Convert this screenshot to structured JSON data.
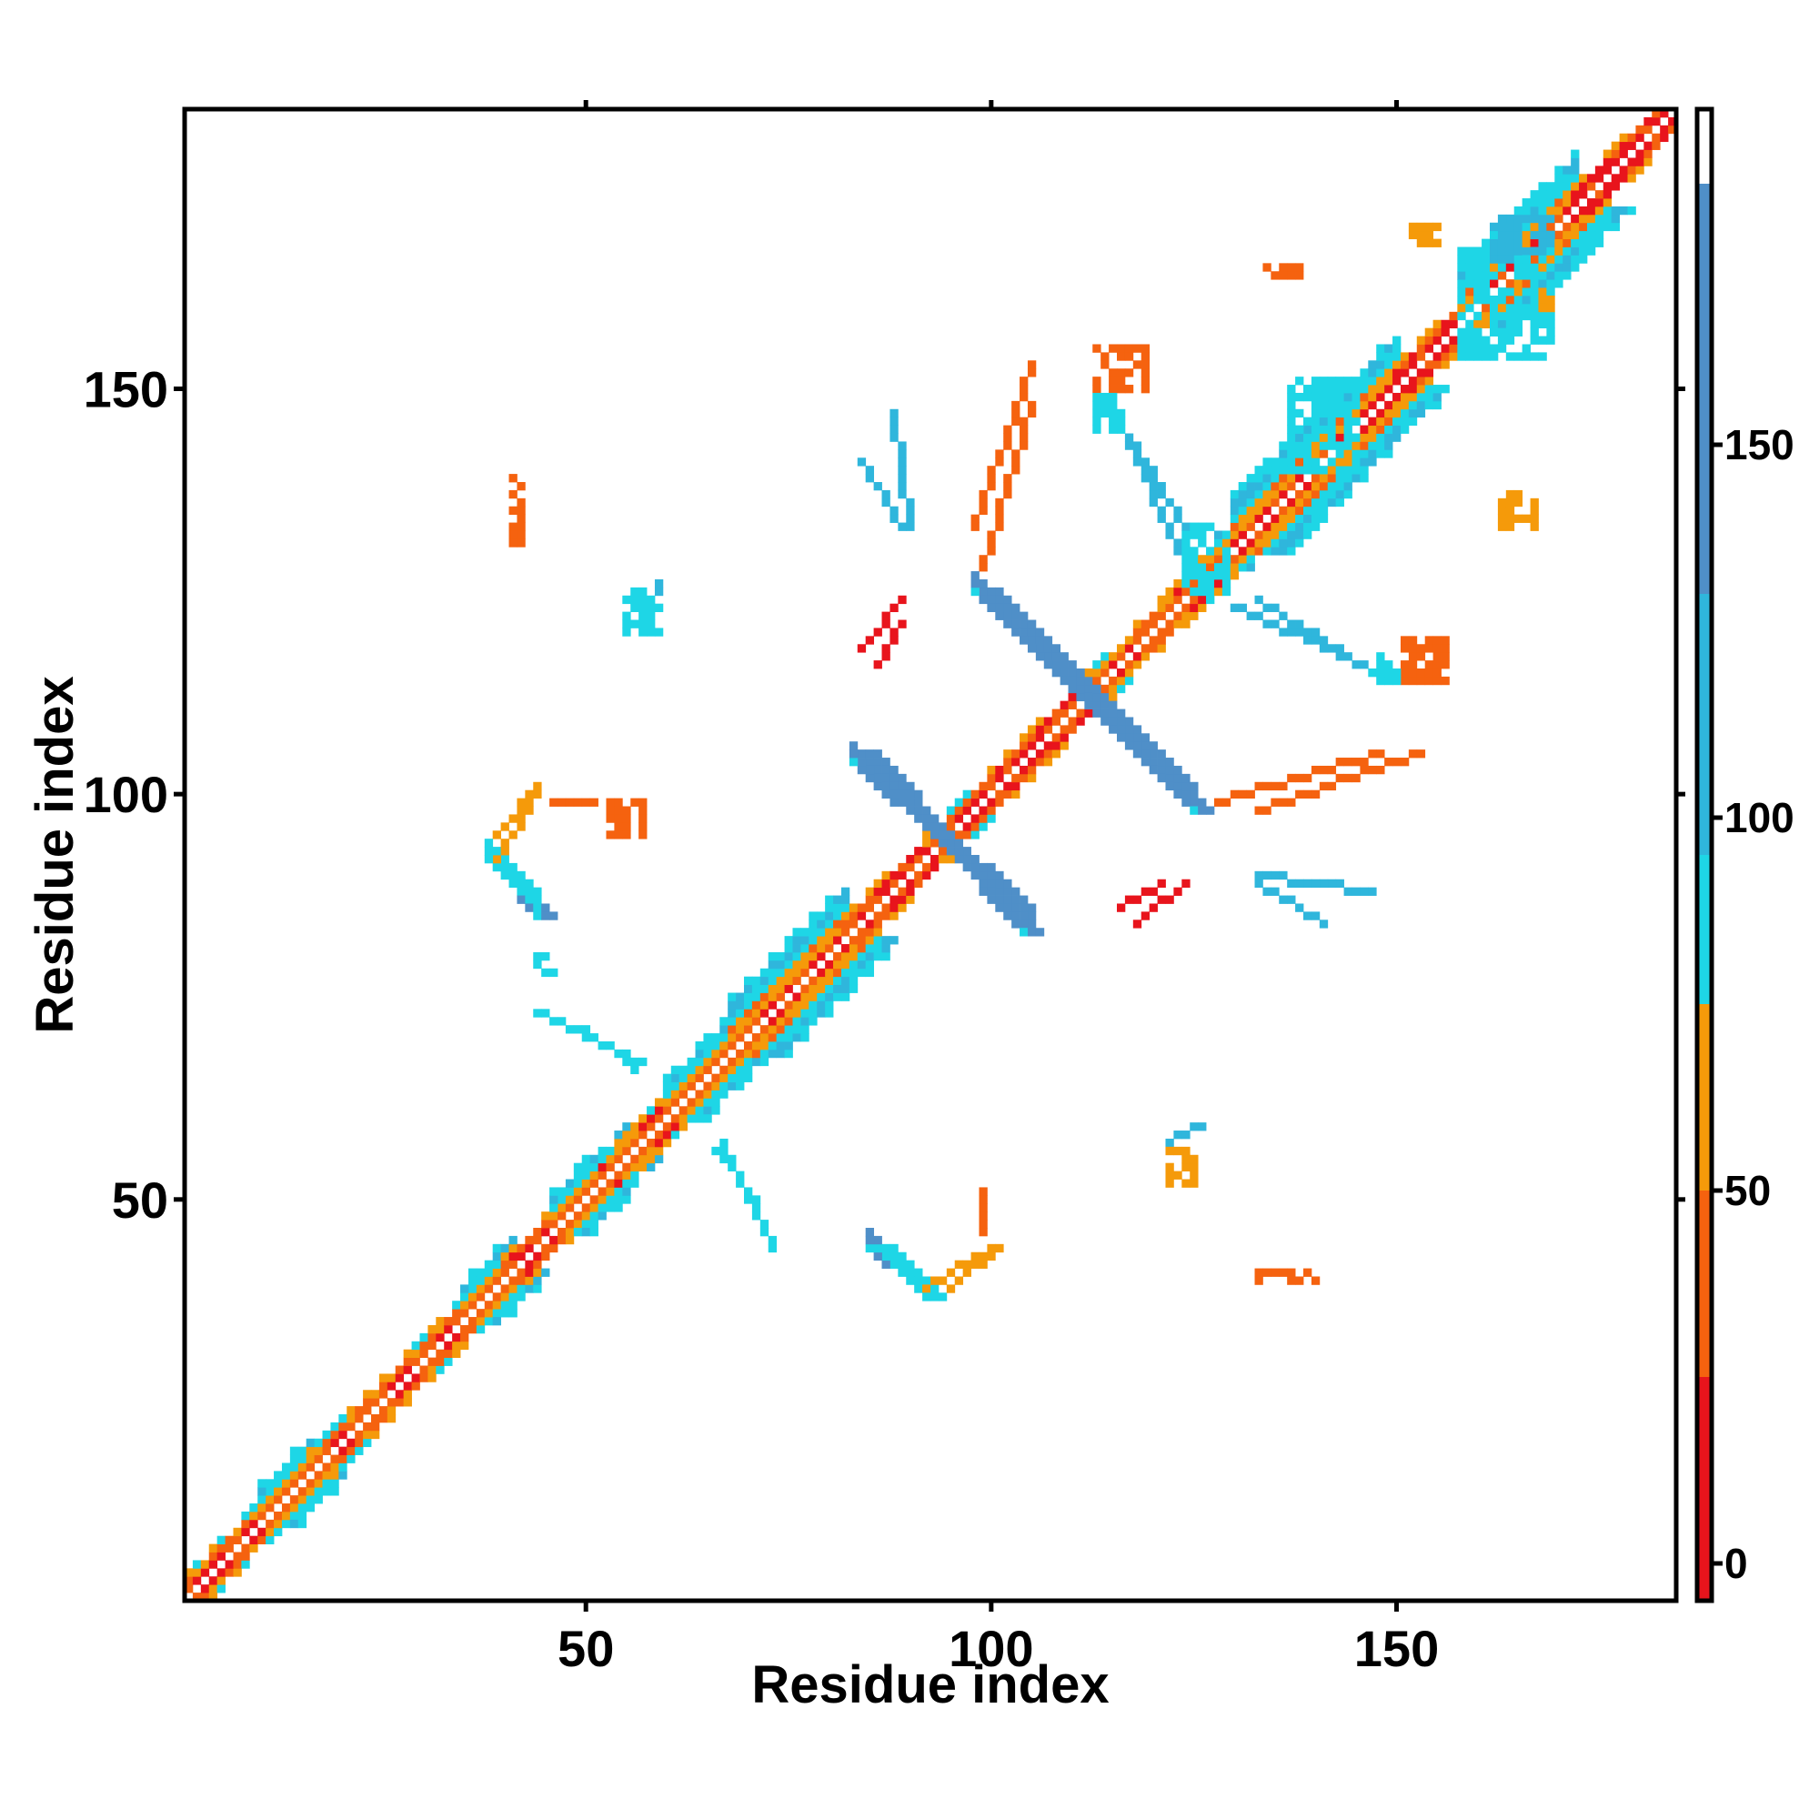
{
  "chart_data": {
    "type": "heatmap",
    "title": "",
    "xlabel": "Residue index",
    "ylabel": "Residue index",
    "xlim": [
      1,
      184
    ],
    "ylim": [
      1,
      184
    ],
    "x_ticks": [
      50,
      100,
      150
    ],
    "y_ticks": [
      50,
      100,
      150
    ],
    "grid": false,
    "symmetric": true,
    "colorbar": {
      "range": [
        -5,
        195
      ],
      "ticks": [
        0,
        50,
        100,
        150
      ],
      "bands": [
        {
          "from": -5,
          "to": 25,
          "color": "#e8141c"
        },
        {
          "from": 25,
          "to": 50,
          "color": "#f5620f"
        },
        {
          "from": 50,
          "to": 75,
          "color": "#f59a0a"
        },
        {
          "from": 75,
          "to": 95,
          "color": "#1ed6e6"
        },
        {
          "from": 95,
          "to": 130,
          "color": "#2fb6dc"
        },
        {
          "from": 130,
          "to": 185,
          "color": "#4f8fc8"
        },
        {
          "from": 185,
          "to": 195,
          "color": "#ffffff"
        }
      ]
    },
    "band_colors": {
      "red": "#e8141c",
      "orange_red": "#f5620f",
      "orange": "#f59a0a",
      "cyan": "#1ed6e6",
      "sky": "#2fb6dc",
      "steel_blue": "#4f8fc8"
    },
    "diagonal_segments": [
      {
        "from": 1,
        "to": 11,
        "pattern": "mixed_orange"
      },
      {
        "from": 10,
        "to": 16,
        "pattern": "cyan_band"
      },
      {
        "from": 16,
        "to": 36,
        "pattern": "mixed_orange"
      },
      {
        "from": 35,
        "to": 41,
        "pattern": "cyan_band"
      },
      {
        "from": 40,
        "to": 47,
        "pattern": "red_helix"
      },
      {
        "from": 46,
        "to": 52,
        "pattern": "cyan_band"
      },
      {
        "from": 52,
        "to": 62,
        "pattern": "orange_cyan"
      },
      {
        "from": 60,
        "to": 68,
        "pattern": "cyan_band"
      },
      {
        "from": 68,
        "to": 82,
        "pattern": "cyan_wide"
      },
      {
        "from": 82,
        "to": 92,
        "pattern": "red_helix"
      },
      {
        "from": 92,
        "to": 99,
        "pattern": "mixed_orange"
      },
      {
        "from": 99,
        "to": 111,
        "pattern": "red_helix"
      },
      {
        "from": 111,
        "to": 122,
        "pattern": "mixed_orange"
      },
      {
        "from": 122,
        "to": 130,
        "pattern": "orange_cyan"
      },
      {
        "from": 130,
        "to": 150,
        "pattern": "cyan_wide"
      },
      {
        "from": 150,
        "to": 158,
        "pattern": "red_helix"
      },
      {
        "from": 158,
        "to": 172,
        "pattern": "cyan_wide"
      },
      {
        "from": 172,
        "to": 184,
        "pattern": "red_helix"
      }
    ],
    "contact_segments": [
      {
        "x1": 84,
        "y1": 105,
        "x2": 104,
        "y2": 83,
        "band": "steel_blue",
        "width": 3
      },
      {
        "x1": 99,
        "y1": 125,
        "x2": 125,
        "y2": 98,
        "band": "steel_blue",
        "width": 3
      },
      {
        "x1": 39,
        "y1": 91,
        "x2": 44,
        "y2": 85,
        "band": "steel_blue",
        "width": 3
      },
      {
        "x1": 86,
        "y1": 44,
        "x2": 92,
        "y2": 38,
        "band": "cyan",
        "width": 3
      },
      {
        "x1": 39,
        "y1": 95,
        "x2": 44,
        "y2": 101,
        "band": "orange",
        "width": 1
      },
      {
        "x1": 92,
        "y1": 39,
        "x2": 100,
        "y2": 44,
        "band": "orange",
        "width": 1
      },
      {
        "x1": 128,
        "y1": 99,
        "x2": 148,
        "y2": 105,
        "band": "orange_red",
        "width": 1
      },
      {
        "x1": 88,
        "y1": 147,
        "x2": 90,
        "y2": 133,
        "band": "sky",
        "width": 1
      },
      {
        "x1": 98,
        "y1": 133,
        "x2": 105,
        "y2": 153,
        "band": "orange_red",
        "width": 1
      },
      {
        "x1": 117,
        "y1": 144,
        "x2": 124,
        "y2": 133,
        "band": "sky",
        "width": 1
      },
      {
        "x1": 130,
        "y1": 123,
        "x2": 146,
        "y2": 116,
        "band": "sky",
        "width": 1
      },
      {
        "x1": 86,
        "y1": 116,
        "x2": 89,
        "y2": 121,
        "band": "red",
        "width": 1
      },
      {
        "x1": 118,
        "y1": 84,
        "x2": 124,
        "y2": 89,
        "band": "red",
        "width": 1
      },
      {
        "x1": 133,
        "y1": 89,
        "x2": 141,
        "y2": 84,
        "band": "sky",
        "width": 1
      },
      {
        "x1": 99,
        "y1": 46,
        "x2": 99,
        "y2": 51,
        "band": "orange_red",
        "width": 1
      },
      {
        "x1": 122,
        "y1": 57,
        "x2": 126,
        "y2": 59,
        "band": "sky",
        "width": 1
      },
      {
        "x1": 66,
        "y1": 56,
        "x2": 71,
        "y2": 50,
        "band": "cyan",
        "width": 1
      },
      {
        "x1": 44,
        "y1": 73,
        "x2": 57,
        "y2": 67,
        "band": "cyan",
        "width": 1
      }
    ],
    "contact_blocks": [
      {
        "x": 113,
        "y": 150,
        "w": 7,
        "h": 6,
        "band": "orange_red"
      },
      {
        "x": 113,
        "y": 145,
        "w": 4,
        "h": 5,
        "band": "cyan"
      },
      {
        "x": 151,
        "y": 114,
        "w": 6,
        "h": 6,
        "band": "orange_red"
      },
      {
        "x": 147,
        "y": 114,
        "w": 4,
        "h": 4,
        "band": "cyan"
      },
      {
        "x": 55,
        "y": 120,
        "w": 5,
        "h": 6,
        "band": "cyan"
      },
      {
        "x": 53,
        "y": 95,
        "w": 5,
        "h": 5,
        "band": "orange_red"
      },
      {
        "x": 158,
        "y": 154,
        "w": 12,
        "h": 14,
        "band": "cyan"
      },
      {
        "x": 168,
        "y": 160,
        "w": 3,
        "h": 4,
        "band": "orange"
      },
      {
        "x": 162,
        "y": 166,
        "w": 8,
        "h": 6,
        "band": "sky"
      },
      {
        "x": 152,
        "y": 168,
        "w": 4,
        "h": 3,
        "band": "orange"
      },
      {
        "x": 134,
        "y": 164,
        "w": 5,
        "h": 2,
        "band": "orange_red"
      },
      {
        "x": 41,
        "y": 131,
        "w": 2,
        "h": 9,
        "band": "orange_red"
      },
      {
        "x": 163,
        "y": 133,
        "w": 5,
        "h": 5,
        "band": "orange"
      },
      {
        "x": 133,
        "y": 40,
        "w": 8,
        "h": 2,
        "band": "orange_red"
      },
      {
        "x": 122,
        "y": 52,
        "w": 4,
        "h": 5,
        "band": "orange"
      },
      {
        "x": 137,
        "y": 140,
        "w": 9,
        "h": 12,
        "band": "cyan"
      },
      {
        "x": 124,
        "y": 125,
        "w": 6,
        "h": 9,
        "band": "cyan"
      },
      {
        "x": 44,
        "y": 78,
        "w": 3,
        "h": 3,
        "band": "cyan"
      }
    ]
  }
}
